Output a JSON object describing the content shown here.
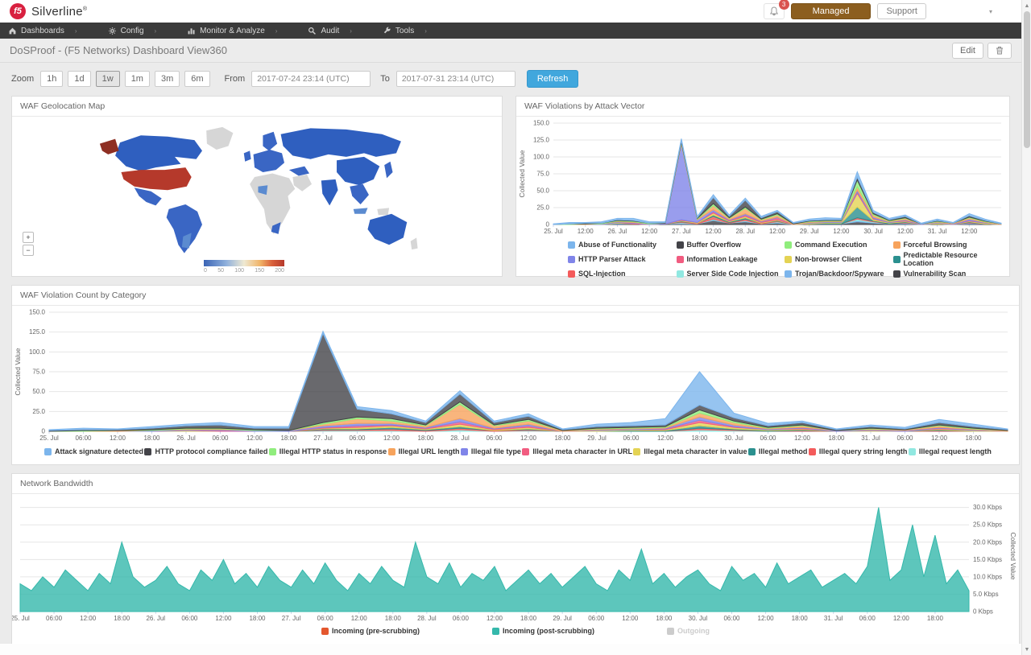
{
  "header": {
    "brand": "Silverline",
    "registered": "®",
    "logo_text": "f5",
    "notification_count": "3",
    "managed_label": "Managed",
    "support_label": "Support",
    "user_caret": "▾"
  },
  "nav": {
    "items": [
      {
        "label": "Dashboards"
      },
      {
        "label": "Config"
      },
      {
        "label": "Monitor & Analyze"
      },
      {
        "label": "Audit"
      },
      {
        "label": "Tools"
      }
    ],
    "caret": "›"
  },
  "page": {
    "title": "DoSProof - (F5 Networks) Dashboard View360",
    "edit_label": "Edit"
  },
  "controls": {
    "zoom_label": "Zoom",
    "zoom_options": [
      "1h",
      "1d",
      "1w",
      "1m",
      "3m",
      "6m"
    ],
    "zoom_selected": "1w",
    "from_label": "From",
    "from_value": "2017-07-24 23:14 (UTC)",
    "to_label": "To",
    "to_value": "2017-07-31 23:14 (UTC)",
    "refresh_label": "Refresh"
  },
  "panels": {
    "map": {
      "title": "WAF Geolocation Map",
      "zoom_in": "+",
      "zoom_out": "−"
    },
    "attack_vector": {
      "title": "WAF Violations by Attack Vector"
    },
    "category": {
      "title": "WAF Violation Count by Category"
    },
    "bandwidth": {
      "title": "Network Bandwidth"
    }
  },
  "chart_data": [
    {
      "id": "map",
      "type": "heatmap",
      "title": "WAF Geolocation Map",
      "colorbar": {
        "min": 0,
        "max": 200,
        "tick_labels": [
          "0",
          "50",
          "100",
          "150",
          "200"
        ]
      },
      "highlights": [
        {
          "region": "United States",
          "value": "≈200 (high)",
          "color": "#b5392b"
        },
        {
          "region": "Canada / Russia / China / Brazil / Europe / India / Australia",
          "value": "low–mid",
          "color": "#2f5fbf"
        },
        {
          "region": "Africa / Greenland / others",
          "value": "no data",
          "color": "#d6d6d6"
        }
      ]
    },
    {
      "id": "attack_vector",
      "type": "area",
      "stacked": true,
      "title": "WAF Violations by Attack Vector",
      "ylabel": "Collected Value",
      "ylim": [
        0,
        150
      ],
      "yticks": [
        0,
        25,
        50,
        75,
        100,
        125,
        150
      ],
      "ytick_labels": [
        "0",
        "25.0",
        "50.0",
        "75.0",
        "100.0",
        "125.0",
        "150.0"
      ],
      "x_start": "2017-07-25 00:00",
      "x_step_hours": 6,
      "x_tick_step": 2,
      "x_tick_labels": [
        "25. Jul",
        "12:00",
        "26. Jul",
        "12:00",
        "27. Jul",
        "12:00",
        "28. Jul",
        "12:00",
        "29. Jul",
        "12:00",
        "30. Jul",
        "12:00",
        "31. Jul",
        "12:00"
      ],
      "legend_position": "bottom",
      "grid": true,
      "series": [
        {
          "name": "Abuse of Functionality",
          "color": "#7cb5ec",
          "values": [
            1,
            2,
            1,
            2,
            2,
            3,
            2,
            1,
            3,
            2,
            4,
            2,
            3,
            2,
            2,
            1,
            2,
            3,
            2,
            8,
            3,
            2,
            2,
            1,
            2,
            1,
            3,
            2,
            1
          ]
        },
        {
          "name": "Buffer Overflow",
          "color": "#434348",
          "values": [
            0,
            0,
            1,
            0,
            1,
            1,
            0,
            1,
            2,
            1,
            9,
            2,
            10,
            2,
            3,
            1,
            1,
            1,
            1,
            4,
            2,
            1,
            2,
            0,
            1,
            0,
            2,
            1,
            0
          ]
        },
        {
          "name": "Command Execution",
          "color": "#90ed7d",
          "values": [
            0,
            1,
            0,
            1,
            1,
            1,
            1,
            0,
            1,
            1,
            3,
            1,
            2,
            1,
            2,
            0,
            1,
            1,
            1,
            10,
            2,
            1,
            1,
            0,
            1,
            0,
            1,
            1,
            0
          ]
        },
        {
          "name": "Forceful Browsing",
          "color": "#f7a35c",
          "values": [
            0,
            0,
            1,
            0,
            1,
            1,
            0,
            0,
            2,
            1,
            6,
            2,
            8,
            2,
            3,
            1,
            1,
            1,
            1,
            5,
            3,
            1,
            2,
            0,
            1,
            1,
            2,
            1,
            1
          ]
        },
        {
          "name": "HTTP Parser Attack",
          "color": "#8085e9",
          "values": [
            0,
            0,
            0,
            1,
            1,
            1,
            1,
            1,
            112,
            4,
            3,
            1,
            2,
            1,
            1,
            0,
            1,
            1,
            1,
            3,
            2,
            1,
            1,
            1,
            1,
            1,
            2,
            1,
            0
          ]
        },
        {
          "name": "Information Leakage",
          "color": "#f15c80",
          "values": [
            0,
            0,
            0,
            0,
            0,
            1,
            0,
            0,
            1,
            0,
            2,
            1,
            2,
            1,
            3,
            0,
            0,
            0,
            0,
            2,
            1,
            0,
            1,
            0,
            0,
            0,
            1,
            0,
            0
          ]
        },
        {
          "name": "Non-browser Client",
          "color": "#e4d354",
          "values": [
            0,
            0,
            0,
            0,
            1,
            0,
            0,
            0,
            1,
            1,
            3,
            1,
            2,
            1,
            1,
            0,
            1,
            1,
            1,
            20,
            2,
            1,
            1,
            0,
            1,
            0,
            1,
            1,
            0
          ]
        },
        {
          "name": "Predictable Resource Location",
          "color": "#2b908f",
          "values": [
            0,
            0,
            0,
            0,
            0,
            0,
            0,
            0,
            1,
            0,
            2,
            1,
            2,
            0,
            1,
            0,
            0,
            1,
            1,
            16,
            1,
            1,
            1,
            0,
            0,
            0,
            1,
            0,
            0
          ]
        },
        {
          "name": "SQL-Injection",
          "color": "#f45b5b",
          "values": [
            0,
            0,
            0,
            0,
            0,
            0,
            0,
            0,
            1,
            1,
            4,
            1,
            2,
            1,
            1,
            0,
            0,
            0,
            0,
            2,
            1,
            0,
            1,
            0,
            0,
            0,
            1,
            0,
            0
          ]
        },
        {
          "name": "Server Side Code Injection",
          "color": "#91e8e1",
          "values": [
            0,
            0,
            0,
            0,
            0,
            0,
            0,
            0,
            1,
            0,
            1,
            0,
            1,
            0,
            1,
            0,
            0,
            0,
            0,
            2,
            1,
            0,
            0,
            0,
            0,
            0,
            0,
            0,
            0
          ]
        },
        {
          "name": "Trojan/Backdoor/Spyware",
          "color": "#7cb5ec",
          "values": [
            0,
            0,
            0,
            0,
            1,
            0,
            0,
            0,
            1,
            0,
            1,
            0,
            1,
            0,
            1,
            0,
            0,
            0,
            0,
            2,
            1,
            0,
            1,
            0,
            0,
            0,
            1,
            0,
            0
          ]
        },
        {
          "name": "Vulnerability Scan",
          "color": "#434348",
          "values": [
            0,
            0,
            0,
            0,
            1,
            1,
            0,
            1,
            1,
            1,
            6,
            2,
            4,
            1,
            2,
            0,
            1,
            1,
            1,
            4,
            2,
            1,
            1,
            0,
            1,
            0,
            1,
            1,
            0
          ]
        }
      ]
    },
    {
      "id": "category",
      "type": "area",
      "stacked": true,
      "title": "WAF Violation Count by Category",
      "ylabel": "Collected Value",
      "ylim": [
        0,
        150
      ],
      "yticks": [
        0,
        25,
        50,
        75,
        100,
        125,
        150
      ],
      "ytick_labels": [
        "0",
        "25.0",
        "50.0",
        "75.0",
        "100.0",
        "125.0",
        "150.0"
      ],
      "x_start": "2017-07-25 00:00",
      "x_step_hours": 6,
      "x_tick_step": 1,
      "x_tick_labels": [
        "25. Jul",
        "06:00",
        "12:00",
        "18:00",
        "26. Jul",
        "06:00",
        "12:00",
        "18:00",
        "27. Jul",
        "06:00",
        "12:00",
        "18:00",
        "28. Jul",
        "06:00",
        "12:00",
        "18:00",
        "29. Jul",
        "06:00",
        "12:00",
        "18:00",
        "30. Jul",
        "06:00",
        "12:00",
        "18:00",
        "31. Jul",
        "06:00",
        "12:00",
        "18:00"
      ],
      "legend_position": "bottom",
      "grid": true,
      "series": [
        {
          "name": "Attack signature detected",
          "color": "#7cb5ec",
          "values": [
            1,
            2,
            1,
            2,
            2,
            3,
            2,
            2,
            3,
            3,
            4,
            2,
            4,
            2,
            3,
            1,
            3,
            4,
            8,
            42,
            6,
            3,
            2,
            1,
            2,
            2,
            4,
            3,
            1
          ]
        },
        {
          "name": "HTTP protocol compliance failed",
          "color": "#434348",
          "values": [
            1,
            1,
            1,
            2,
            3,
            4,
            2,
            3,
            112,
            10,
            6,
            3,
            10,
            3,
            4,
            1,
            2,
            2,
            2,
            6,
            4,
            2,
            3,
            1,
            2,
            1,
            3,
            2,
            1
          ]
        },
        {
          "name": "Illegal HTTP status in response",
          "color": "#90ed7d",
          "values": [
            0,
            1,
            0,
            1,
            1,
            1,
            1,
            0,
            2,
            2,
            3,
            1,
            3,
            1,
            2,
            0,
            1,
            1,
            1,
            4,
            2,
            1,
            1,
            0,
            1,
            0,
            1,
            1,
            0
          ]
        },
        {
          "name": "Illegal URL length",
          "color": "#f7a35c",
          "values": [
            0,
            0,
            1,
            0,
            1,
            1,
            0,
            0,
            2,
            6,
            3,
            2,
            18,
            3,
            4,
            1,
            1,
            1,
            1,
            5,
            3,
            1,
            2,
            0,
            1,
            1,
            2,
            1,
            1
          ]
        },
        {
          "name": "Illegal file type",
          "color": "#8085e9",
          "values": [
            0,
            0,
            0,
            1,
            1,
            1,
            1,
            1,
            2,
            3,
            2,
            1,
            4,
            1,
            2,
            0,
            1,
            1,
            1,
            4,
            2,
            1,
            1,
            1,
            1,
            1,
            1,
            1,
            0
          ]
        },
        {
          "name": "Illegal meta character in URL",
          "color": "#f15c80",
          "values": [
            0,
            0,
            0,
            0,
            0,
            1,
            0,
            0,
            1,
            2,
            1,
            1,
            3,
            1,
            2,
            0,
            0,
            0,
            1,
            3,
            1,
            0,
            1,
            0,
            0,
            0,
            1,
            0,
            0
          ]
        },
        {
          "name": "Illegal meta character in value",
          "color": "#e4d354",
          "values": [
            0,
            0,
            0,
            0,
            1,
            0,
            0,
            0,
            1,
            2,
            2,
            1,
            3,
            1,
            2,
            0,
            1,
            1,
            1,
            4,
            2,
            1,
            1,
            0,
            1,
            0,
            1,
            1,
            0
          ]
        },
        {
          "name": "Illegal method",
          "color": "#2b908f",
          "values": [
            0,
            0,
            0,
            0,
            0,
            0,
            0,
            0,
            1,
            1,
            2,
            1,
            2,
            0,
            1,
            0,
            0,
            1,
            1,
            3,
            1,
            1,
            1,
            0,
            0,
            0,
            1,
            0,
            0
          ]
        },
        {
          "name": "Illegal query string length",
          "color": "#f45b5b",
          "values": [
            0,
            0,
            0,
            0,
            0,
            0,
            0,
            0,
            1,
            1,
            2,
            1,
            2,
            1,
            1,
            0,
            0,
            0,
            0,
            2,
            1,
            0,
            1,
            0,
            0,
            0,
            1,
            0,
            0
          ]
        },
        {
          "name": "Illegal request length",
          "color": "#91e8e1",
          "values": [
            0,
            0,
            0,
            0,
            0,
            0,
            0,
            0,
            1,
            1,
            1,
            0,
            2,
            0,
            1,
            0,
            0,
            0,
            0,
            2,
            1,
            0,
            0,
            0,
            0,
            0,
            0,
            0,
            0
          ]
        }
      ]
    },
    {
      "id": "bandwidth",
      "type": "area",
      "stacked": false,
      "title": "Network Bandwidth",
      "ylabel": "Collected Value",
      "ylim": [
        0,
        32
      ],
      "yticks": [
        0,
        5,
        10,
        15,
        20,
        25,
        30
      ],
      "ytick_labels": [
        "0 Kbps",
        "5.0 Kbps",
        "10.0 Kbps",
        "15.0 Kbps",
        "20.0 Kbps",
        "25.0 Kbps",
        "30.0 Kbps"
      ],
      "axis_side": "right",
      "x_start": "2017-07-25 00:00",
      "x_step_hours": 2,
      "x_tick_step": 3,
      "x_tick_labels": [
        "25. Jul",
        "06:00",
        "12:00",
        "18:00",
        "26. Jul",
        "06:00",
        "12:00",
        "18:00",
        "27. Jul",
        "06:00",
        "12:00",
        "18:00",
        "28. Jul",
        "06:00",
        "12:00",
        "18:00",
        "29. Jul",
        "06:00",
        "12:00",
        "18:00",
        "30. Jul",
        "06:00",
        "12:00",
        "18:00",
        "31. Jul",
        "06:00",
        "12:00",
        "18:00"
      ],
      "legend_position": "bottom",
      "grid": true,
      "legend": [
        {
          "name": "Incoming (pre-scrubbing)",
          "color": "#e4572e",
          "disabled": false
        },
        {
          "name": "Incoming (post-scrubbing)",
          "color": "#35b8ab",
          "disabled": false
        },
        {
          "name": "Outgoing",
          "color": "#cccccc",
          "disabled": true
        }
      ],
      "series": [
        {
          "name": "Incoming (post-scrubbing)",
          "color": "#35b8ab",
          "values": [
            8,
            6,
            10,
            7,
            12,
            9,
            6,
            11,
            8,
            20,
            10,
            7,
            9,
            13,
            8,
            6,
            12,
            9,
            15,
            8,
            11,
            7,
            13,
            9,
            7,
            12,
            8,
            14,
            9,
            6,
            11,
            8,
            13,
            9,
            7,
            20,
            10,
            8,
            14,
            7,
            11,
            9,
            13,
            6,
            9,
            12,
            8,
            11,
            7,
            10,
            13,
            8,
            6,
            12,
            9,
            18,
            8,
            11,
            7,
            10,
            12,
            8,
            6,
            13,
            9,
            11,
            7,
            14,
            8,
            10,
            12,
            7,
            9,
            11,
            8,
            13,
            30,
            9,
            12,
            25,
            10,
            22,
            8,
            12,
            6
          ]
        }
      ]
    }
  ]
}
